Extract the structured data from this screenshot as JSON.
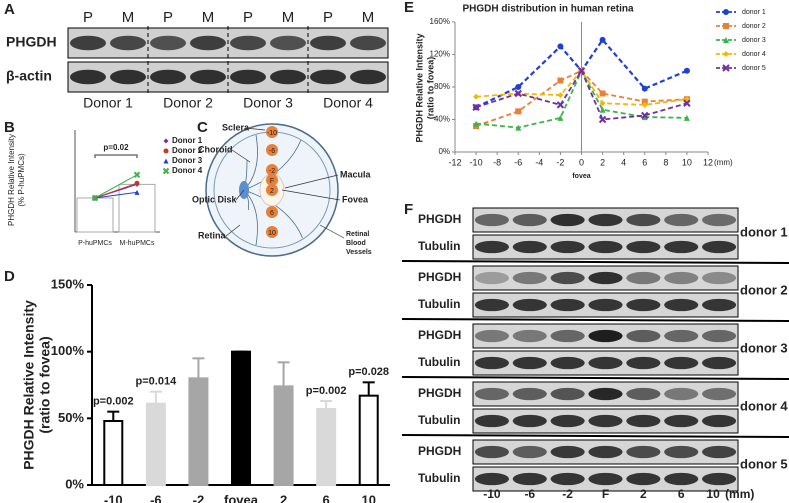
{
  "panel_labels": [
    "A",
    "B",
    "C",
    "D",
    "E",
    "F"
  ],
  "blot_a": {
    "lanes": [
      "P",
      "M",
      "P",
      "M",
      "P",
      "M",
      "P",
      "M"
    ],
    "rows": [
      "PHGDH",
      "β-actin"
    ],
    "groups": [
      "Donor 1",
      "Donor 2",
      "Donor 3",
      "Donor 4"
    ]
  },
  "eye_c": {
    "labels": [
      "Sclera",
      "Choroid",
      "Optic Disk",
      "Retina",
      "Macula",
      "Fovea",
      "Retinal",
      "Blood",
      "Vessels"
    ],
    "positions": [
      "-10",
      "-6",
      "-2",
      "F",
      "2",
      "6",
      "10"
    ]
  },
  "blot_f": {
    "rows": [
      "PHGDH",
      "Tubulin"
    ],
    "donors": [
      {
        "name": "donor 1",
        "color": "#2a3fd0"
      },
      {
        "name": "donor 2",
        "color": "#e8803a"
      },
      {
        "name": "donor 3",
        "color": "#23a05a"
      },
      {
        "name": "donor 4",
        "color": "#f0b400"
      },
      {
        "name": "donor 5",
        "color": "#7030a0"
      }
    ],
    "lanes": [
      "-10",
      "-6",
      "-2",
      "F",
      "2",
      "6",
      "10"
    ],
    "unit": "(mm)"
  },
  "chart_data": [
    {
      "type": "combo",
      "ylabel": [
        "PHGDH Relative Intensity",
        "(% P-huPMCs)"
      ],
      "categories": [
        "P-huPMCs",
        "M-huPMCs"
      ],
      "values": [
        100,
        124
      ],
      "ylim": [
        40,
        220
      ],
      "annotation": "p=0.02",
      "series": [
        {
          "name": "Donor 1",
          "color": "#7030a0",
          "marker": "diamond",
          "values": [
            100,
            124
          ]
        },
        {
          "name": "Donor 2",
          "color": "#c0392b",
          "marker": "circle",
          "values": [
            100,
            126
          ]
        },
        {
          "name": "Donor 3",
          "color": "#1f3fd6",
          "marker": "triangle",
          "values": [
            100,
            110
          ]
        },
        {
          "name": "Donor 4",
          "color": "#3cb44b",
          "marker": "star",
          "values": [
            100,
            141
          ]
        }
      ]
    },
    {
      "type": "bar",
      "ylabel": [
        "PHGDH Relative Intensity",
        "(ratio to fovea)"
      ],
      "categories": [
        "-10",
        "-6",
        "-2",
        "fovea",
        "2",
        "6",
        "10"
      ],
      "values": [
        48,
        61,
        80,
        100,
        74,
        57,
        67
      ],
      "errors": [
        7,
        9,
        15,
        0,
        18,
        6,
        10
      ],
      "colors": [
        "#ffffff",
        "#d9d9d9",
        "#a6a6a6",
        "#000000",
        "#a6a6a6",
        "#d9d9d9",
        "#ffffff"
      ],
      "annotations": [
        "p=0.002",
        "p=0.014",
        null,
        null,
        null,
        "p=0.002",
        "p=0.028"
      ],
      "ylim": [
        0,
        150
      ],
      "yticks": [
        {
          "value": 0,
          "label": "0%"
        },
        {
          "value": 50,
          "label": "50%"
        },
        {
          "value": 100,
          "label": "100%"
        },
        {
          "value": 150,
          "label": "150%"
        }
      ]
    },
    {
      "type": "line",
      "title": "PHGDH distribution in human retina",
      "ylabel": [
        "PHGDH Relative Intensity",
        "(ratio to fovea)"
      ],
      "xlabel": "fovea",
      "xunit": "(mm)",
      "legend": "right",
      "x": [
        -10,
        -6,
        -2,
        0,
        2,
        6,
        10
      ],
      "xlim": [
        -12,
        12
      ],
      "xticks": [
        -12,
        -10,
        -8,
        -6,
        -4,
        -2,
        0,
        2,
        4,
        6,
        8,
        10,
        12
      ],
      "ylim": [
        0,
        160
      ],
      "yticks": [
        {
          "value": 0,
          "label": "0%"
        },
        {
          "value": 40,
          "label": "40%"
        },
        {
          "value": 80,
          "label": "80%"
        },
        {
          "value": 120,
          "label": "120%"
        },
        {
          "value": 160,
          "label": "160%"
        }
      ],
      "series": [
        {
          "name": "donor 1",
          "color": "#1f3fd6",
          "marker": "circle",
          "values": [
            55,
            80,
            130,
            100,
            138,
            78,
            100
          ]
        },
        {
          "name": "donor 2",
          "color": "#e8803a",
          "marker": "square",
          "values": [
            32,
            50,
            88,
            100,
            72,
            62,
            65
          ]
        },
        {
          "name": "donor 3",
          "color": "#3cb44b",
          "marker": "triangle",
          "values": [
            35,
            30,
            42,
            100,
            52,
            43,
            42
          ]
        },
        {
          "name": "donor 4",
          "color": "#f5b800",
          "marker": "diamond",
          "values": [
            68,
            72,
            70,
            100,
            60,
            58,
            65
          ]
        },
        {
          "name": "donor 5",
          "color": "#7030a0",
          "marker": "x",
          "values": [
            55,
            72,
            58,
            100,
            40,
            45,
            60
          ]
        }
      ]
    }
  ]
}
